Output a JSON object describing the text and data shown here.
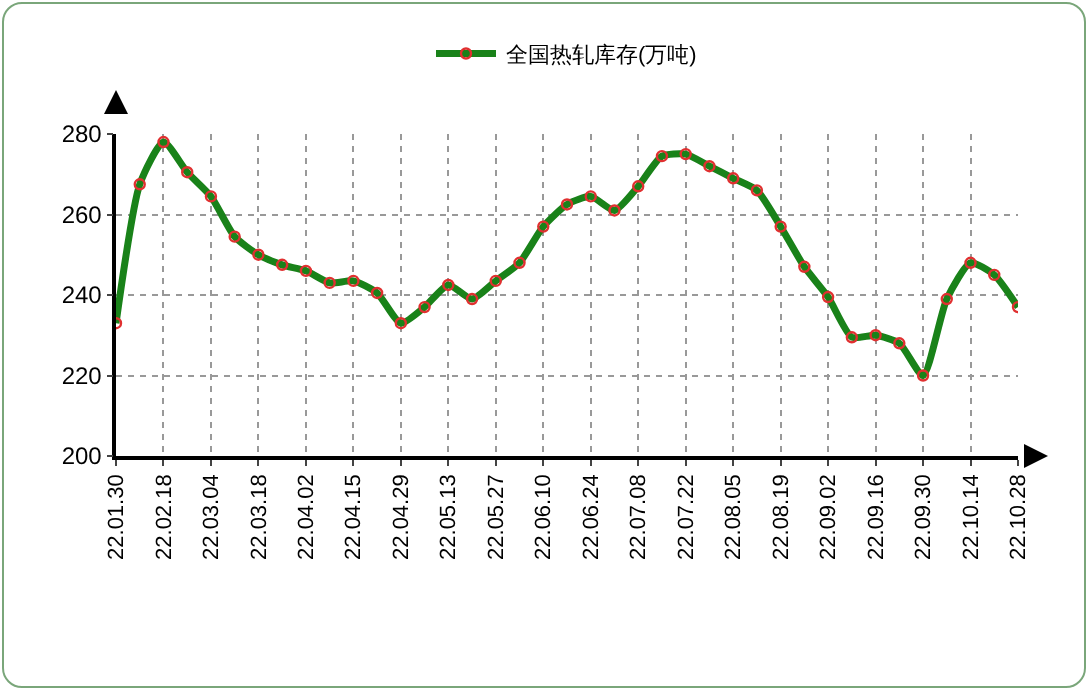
{
  "chart_data": {
    "type": "line",
    "categories": [
      "22.01.30",
      null,
      "22.02.18",
      null,
      "22.03.04",
      null,
      "22.03.18",
      null,
      "22.04.02",
      null,
      "22.04.15",
      null,
      "22.04.29",
      null,
      "22.05.13",
      null,
      "22.05.27",
      null,
      "22.06.10",
      null,
      "22.06.24",
      null,
      "22.07.08",
      null,
      "22.07.22",
      null,
      "22.08.05",
      null,
      "22.08.19",
      null,
      "22.09.02",
      null,
      "22.09.16",
      null,
      "22.09.30",
      null,
      "22.10.14",
      null,
      "22.10.28"
    ],
    "series": [
      {
        "name": "全国热轧库存(万吨)",
        "color": "#198219",
        "values": [
          233,
          267.5,
          278,
          270.5,
          264.5,
          254.5,
          250,
          247.5,
          246,
          243,
          243.5,
          240.5,
          233,
          237,
          242.5,
          239,
          243.5,
          248,
          257,
          262.5,
          264.5,
          261,
          267,
          274.5,
          275,
          272,
          269,
          266,
          257,
          247,
          239.5,
          229.5,
          230,
          228,
          220,
          239,
          248,
          245,
          237
        ]
      }
    ],
    "ylim": [
      200,
      280
    ],
    "yticks": [
      200,
      220,
      240,
      260,
      280
    ],
    "grid": true,
    "legend": "top",
    "marker": "circle",
    "line_style": "solid"
  }
}
